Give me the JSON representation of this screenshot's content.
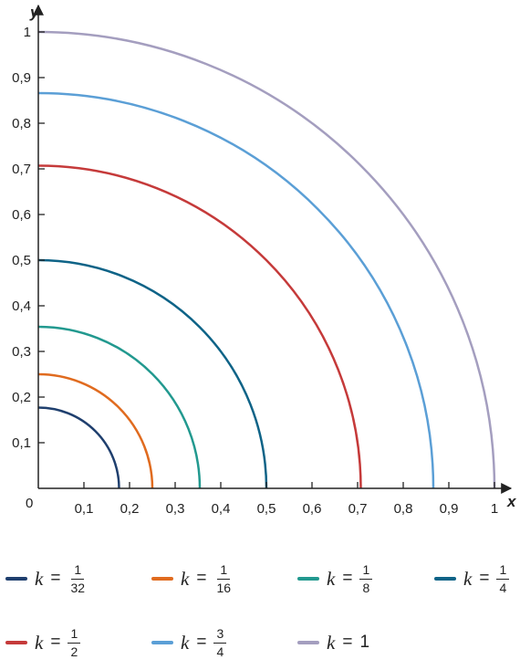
{
  "chart_data": {
    "type": "line",
    "title": "",
    "xlabel": "x",
    "ylabel": "y",
    "xlim": [
      0,
      1
    ],
    "ylim": [
      0,
      1
    ],
    "x_ticks": [
      "0,1",
      "0,2",
      "0,3",
      "0,4",
      "0,5",
      "0,6",
      "0,7",
      "0,8",
      "0,9",
      "1"
    ],
    "y_ticks": [
      "0,1",
      "0,2",
      "0,3",
      "0,4",
      "0,5",
      "0,6",
      "0,7",
      "0,8",
      "0,9",
      "1"
    ],
    "origin_label": "0",
    "grid": false,
    "legend_position": "bottom",
    "series": [
      {
        "name": "k = 1/32",
        "k_label": "k",
        "eq": "=",
        "num": "1",
        "den": "32",
        "whole": "",
        "radius": 0.177,
        "color": "#1f3f6e"
      },
      {
        "name": "k = 1/16",
        "k_label": "k",
        "eq": "=",
        "num": "1",
        "den": "16",
        "whole": "",
        "radius": 0.25,
        "color": "#e06b1f"
      },
      {
        "name": "k = 1/8",
        "k_label": "k",
        "eq": "=",
        "num": "1",
        "den": "8",
        "whole": "",
        "radius": 0.354,
        "color": "#22998f"
      },
      {
        "name": "k = 1/4",
        "k_label": "k",
        "eq": "=",
        "num": "1",
        "den": "4",
        "whole": "",
        "radius": 0.5,
        "color": "#0e6387"
      },
      {
        "name": "k = 1/2",
        "k_label": "k",
        "eq": "=",
        "num": "1",
        "den": "2",
        "whole": "",
        "radius": 0.707,
        "color": "#c53a3a"
      },
      {
        "name": "k = 3/4",
        "k_label": "k",
        "eq": "=",
        "num": "3",
        "den": "4",
        "whole": "",
        "radius": 0.866,
        "color": "#5b9fd6"
      },
      {
        "name": "k = 1",
        "k_label": "k",
        "eq": "=",
        "num": "",
        "den": "",
        "whole": "1",
        "radius": 1.0,
        "color": "#a49ebf"
      }
    ]
  }
}
